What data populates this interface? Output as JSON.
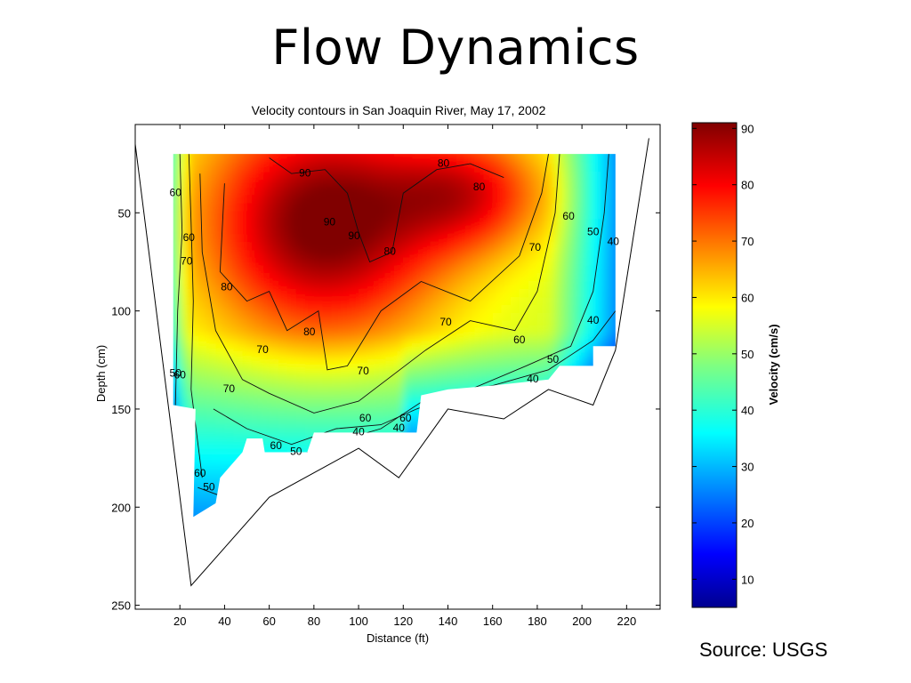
{
  "slide": {
    "title": "Flow Dynamics",
    "source": "Source: USGS"
  },
  "chart_data": {
    "type": "heatmap",
    "title": "Velocity contours in San Joaquin River, May 17, 2002",
    "xlabel": "Distance (ft)",
    "ylabel": "Depth (cm)",
    "colorbar_label": "Velocity (cm/s)",
    "xlim": [
      0,
      235
    ],
    "ylim": [
      252,
      5
    ],
    "x_ticks": [
      20,
      40,
      60,
      80,
      100,
      120,
      140,
      160,
      180,
      200,
      220
    ],
    "y_ticks": [
      50,
      100,
      150,
      200,
      250
    ],
    "colorbar_range": [
      5,
      91
    ],
    "colorbar_ticks": [
      10,
      20,
      30,
      40,
      50,
      60,
      70,
      80,
      90
    ],
    "colormap": "jet",
    "contour_levels": [
      40,
      50,
      60,
      70,
      80,
      90
    ],
    "bed_profile": [
      {
        "x": 0,
        "y": 15
      },
      {
        "x": 25,
        "y": 240
      },
      {
        "x": 60,
        "y": 195
      },
      {
        "x": 100,
        "y": 170
      },
      {
        "x": 118,
        "y": 185
      },
      {
        "x": 140,
        "y": 150
      },
      {
        "x": 165,
        "y": 155
      },
      {
        "x": 185,
        "y": 140
      },
      {
        "x": 205,
        "y": 148
      },
      {
        "x": 215,
        "y": 120
      },
      {
        "x": 230,
        "y": 12
      }
    ],
    "contour_labels": [
      {
        "x": 18,
        "y": 40,
        "v": "60"
      },
      {
        "x": 24,
        "y": 63,
        "v": "60"
      },
      {
        "x": 23,
        "y": 75,
        "v": "70"
      },
      {
        "x": 41,
        "y": 88,
        "v": "80"
      },
      {
        "x": 76,
        "y": 30,
        "v": "90"
      },
      {
        "x": 87,
        "y": 55,
        "v": "90"
      },
      {
        "x": 98,
        "y": 62,
        "v": "90"
      },
      {
        "x": 114,
        "y": 70,
        "v": "80"
      },
      {
        "x": 138,
        "y": 25,
        "v": "80"
      },
      {
        "x": 154,
        "y": 37,
        "v": "80"
      },
      {
        "x": 78,
        "y": 111,
        "v": "80"
      },
      {
        "x": 57,
        "y": 120,
        "v": "70"
      },
      {
        "x": 42,
        "y": 140,
        "v": "70"
      },
      {
        "x": 102,
        "y": 131,
        "v": "70"
      },
      {
        "x": 139,
        "y": 106,
        "v": "70"
      },
      {
        "x": 179,
        "y": 68,
        "v": "70"
      },
      {
        "x": 194,
        "y": 52,
        "v": "60"
      },
      {
        "x": 172,
        "y": 115,
        "v": "60"
      },
      {
        "x": 205,
        "y": 60,
        "v": "50"
      },
      {
        "x": 214,
        "y": 65,
        "v": "40"
      },
      {
        "x": 187,
        "y": 125,
        "v": "50"
      },
      {
        "x": 178,
        "y": 135,
        "v": "40"
      },
      {
        "x": 205,
        "y": 105,
        "v": "40"
      },
      {
        "x": 103,
        "y": 155,
        "v": "60"
      },
      {
        "x": 121,
        "y": 155,
        "v": "60"
      },
      {
        "x": 100,
        "y": 162,
        "v": "40"
      },
      {
        "x": 118,
        "y": 160,
        "v": "40"
      },
      {
        "x": 63,
        "y": 169,
        "v": "60"
      },
      {
        "x": 72,
        "y": 172,
        "v": "50"
      },
      {
        "x": 18,
        "y": 132,
        "v": "50"
      },
      {
        "x": 20,
        "y": 133,
        "v": "60"
      },
      {
        "x": 29,
        "y": 183,
        "v": "60"
      },
      {
        "x": 33,
        "y": 190,
        "v": "50"
      }
    ]
  }
}
